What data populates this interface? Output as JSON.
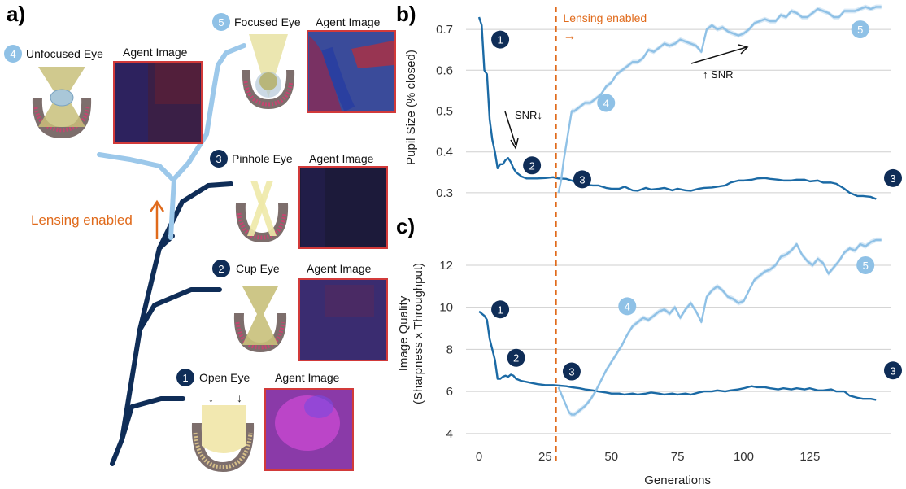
{
  "panel_a": {
    "label": "a)",
    "lensing_text": "Lensing enabled",
    "agent_image_label": "Agent Image",
    "eyes": [
      {
        "num": "1",
        "name": "Open Eye"
      },
      {
        "num": "2",
        "name": "Cup Eye"
      },
      {
        "num": "3",
        "name": "Pinhole Eye"
      },
      {
        "num": "4",
        "name": "Unfocused Eye"
      },
      {
        "num": "5",
        "name": "Focused Eye"
      }
    ]
  },
  "colors": {
    "dark_series": "#1b6aa5",
    "light_series": "#8fc1e6",
    "dark_badge": "#0f2d57",
    "light_badge": "#8fc1e6",
    "lensing": "#e06a1b",
    "tree_dark": "#0f2d57",
    "tree_light": "#9cc8ea"
  },
  "chart_data": [
    {
      "panel": "b)",
      "type": "line",
      "title": "",
      "xlabel": "",
      "ylabel": "Pupil Size (% closed)",
      "xlim": [
        -8,
        157
      ],
      "ylim": [
        0.27,
        0.74
      ],
      "yticks": [
        0.3,
        0.4,
        0.5,
        0.6,
        0.7
      ],
      "grid": "horizontal",
      "vline": {
        "x": 29,
        "label": "Lensing enabled"
      },
      "annotations": [
        "SNR↓",
        "↑ SNR"
      ],
      "badges": [
        {
          "num": "1",
          "series": "dark",
          "x": 8,
          "y": 0.675
        },
        {
          "num": "2",
          "series": "dark",
          "x": 20,
          "y": 0.367
        },
        {
          "num": "3",
          "series": "dark",
          "x": 39,
          "y": 0.333
        },
        {
          "num": "3",
          "series": "dark",
          "x": 161,
          "y": 0.336
        },
        {
          "num": "4",
          "series": "light",
          "x": 48,
          "y": 0.52
        },
        {
          "num": "5",
          "series": "light",
          "x": 144,
          "y": 0.7
        }
      ],
      "series": [
        {
          "key": "dark",
          "x": [
            0,
            1,
            2,
            3,
            4,
            5,
            6,
            7,
            8,
            9,
            10,
            11,
            12,
            13,
            14,
            15,
            16,
            18,
            20,
            22,
            25,
            28,
            30,
            33,
            35,
            38,
            40,
            43,
            45,
            48,
            50,
            53,
            55,
            58,
            60,
            63,
            65,
            68,
            70,
            73,
            75,
            78,
            80,
            83,
            85,
            88,
            90,
            93,
            95,
            98,
            100,
            103,
            105,
            108,
            110,
            113,
            115,
            118,
            120,
            123,
            125,
            128,
            130,
            133,
            135,
            138,
            140,
            143,
            145,
            148,
            150
          ],
          "values": [
            0.73,
            0.71,
            0.6,
            0.59,
            0.48,
            0.43,
            0.4,
            0.36,
            0.37,
            0.37,
            0.38,
            0.385,
            0.375,
            0.36,
            0.35,
            0.345,
            0.34,
            0.335,
            0.335,
            0.335,
            0.336,
            0.338,
            0.335,
            0.334,
            0.33,
            0.322,
            0.32,
            0.318,
            0.318,
            0.312,
            0.31,
            0.31,
            0.315,
            0.306,
            0.305,
            0.312,
            0.308,
            0.31,
            0.312,
            0.306,
            0.31,
            0.306,
            0.305,
            0.31,
            0.312,
            0.313,
            0.315,
            0.318,
            0.325,
            0.33,
            0.33,
            0.332,
            0.335,
            0.336,
            0.334,
            0.332,
            0.33,
            0.33,
            0.332,
            0.332,
            0.328,
            0.33,
            0.325,
            0.325,
            0.322,
            0.31,
            0.3,
            0.292,
            0.292,
            0.29,
            0.285
          ]
        },
        {
          "key": "light",
          "x": [
            30,
            31,
            32,
            33,
            34,
            35,
            36,
            38,
            40,
            42,
            44,
            46,
            48,
            50,
            52,
            54,
            56,
            58,
            60,
            62,
            64,
            66,
            68,
            70,
            72,
            74,
            76,
            78,
            80,
            82,
            84,
            86,
            88,
            90,
            92,
            94,
            96,
            98,
            100,
            102,
            104,
            106,
            108,
            110,
            112,
            114,
            116,
            118,
            120,
            122,
            124,
            126,
            128,
            130,
            132,
            134,
            136,
            138,
            140,
            142,
            144,
            146,
            148,
            150,
            152
          ],
          "values": [
            0.3,
            0.33,
            0.38,
            0.42,
            0.46,
            0.5,
            0.5,
            0.51,
            0.52,
            0.52,
            0.53,
            0.54,
            0.56,
            0.57,
            0.59,
            0.6,
            0.61,
            0.62,
            0.62,
            0.63,
            0.65,
            0.645,
            0.655,
            0.665,
            0.66,
            0.665,
            0.675,
            0.67,
            0.665,
            0.66,
            0.645,
            0.7,
            0.71,
            0.7,
            0.705,
            0.695,
            0.69,
            0.685,
            0.69,
            0.7,
            0.715,
            0.72,
            0.725,
            0.72,
            0.72,
            0.735,
            0.73,
            0.745,
            0.74,
            0.73,
            0.73,
            0.74,
            0.75,
            0.745,
            0.74,
            0.73,
            0.73,
            0.745,
            0.745,
            0.745,
            0.75,
            0.755,
            0.75,
            0.755,
            0.755
          ]
        }
      ]
    },
    {
      "panel": "c)",
      "type": "line",
      "title": "",
      "xlabel": "Generations",
      "ylabel": "Image Quality (Sharpness x Throughput)",
      "ylabel_lines": [
        "Image Quality",
        "(Sharpness x Throughput)"
      ],
      "xlim": [
        -8,
        157
      ],
      "ylim": [
        3.8,
        13.7
      ],
      "xticks": [
        0,
        25,
        50,
        75,
        100,
        125
      ],
      "yticks": [
        4,
        6,
        8,
        10,
        12
      ],
      "grid": "horizontal",
      "vline": {
        "x": 29
      },
      "badges": [
        {
          "num": "1",
          "series": "dark",
          "x": 8,
          "y": 9.9
        },
        {
          "num": "2",
          "series": "dark",
          "x": 14,
          "y": 7.6
        },
        {
          "num": "3",
          "series": "dark",
          "x": 35,
          "y": 6.95
        },
        {
          "num": "3",
          "series": "dark",
          "x": 161,
          "y": 7.0
        },
        {
          "num": "4",
          "series": "light",
          "x": 56,
          "y": 10.05
        },
        {
          "num": "5",
          "series": "light",
          "x": 146,
          "y": 12.0
        }
      ],
      "series": [
        {
          "key": "dark",
          "x": [
            0,
            1,
            2,
            3,
            4,
            5,
            6,
            7,
            8,
            9,
            10,
            11,
            12,
            13,
            14,
            15,
            16,
            18,
            20,
            22,
            25,
            28,
            30,
            33,
            35,
            38,
            40,
            43,
            45,
            48,
            50,
            53,
            55,
            58,
            60,
            63,
            65,
            68,
            70,
            73,
            75,
            78,
            80,
            83,
            85,
            88,
            90,
            93,
            95,
            98,
            100,
            103,
            105,
            108,
            110,
            113,
            115,
            118,
            120,
            123,
            125,
            128,
            130,
            133,
            135,
            138,
            140,
            143,
            145,
            148,
            150
          ],
          "values": [
            9.8,
            9.7,
            9.6,
            9.4,
            8.5,
            8.0,
            7.5,
            6.6,
            6.6,
            6.7,
            6.75,
            6.7,
            6.8,
            6.75,
            6.6,
            6.55,
            6.5,
            6.45,
            6.4,
            6.35,
            6.3,
            6.3,
            6.28,
            6.25,
            6.2,
            6.15,
            6.1,
            6.05,
            6.0,
            5.95,
            5.9,
            5.9,
            5.85,
            5.9,
            5.85,
            5.9,
            5.95,
            5.9,
            5.85,
            5.9,
            5.85,
            5.9,
            5.85,
            5.95,
            6.0,
            6.0,
            6.05,
            6.0,
            6.05,
            6.1,
            6.15,
            6.25,
            6.2,
            6.2,
            6.15,
            6.1,
            6.15,
            6.1,
            6.15,
            6.1,
            6.15,
            6.05,
            6.05,
            6.1,
            6.0,
            6.0,
            5.8,
            5.7,
            5.65,
            5.65,
            5.6
          ]
        },
        {
          "key": "light",
          "x": [
            30,
            31,
            32,
            33,
            34,
            35,
            36,
            38,
            40,
            42,
            44,
            46,
            48,
            50,
            52,
            54,
            56,
            58,
            60,
            62,
            64,
            66,
            68,
            70,
            72,
            74,
            76,
            78,
            80,
            82,
            84,
            86,
            88,
            90,
            92,
            94,
            96,
            98,
            100,
            102,
            104,
            106,
            108,
            110,
            112,
            114,
            116,
            118,
            120,
            122,
            124,
            126,
            128,
            130,
            132,
            134,
            136,
            138,
            140,
            142,
            144,
            146,
            148,
            150,
            152
          ],
          "values": [
            6.2,
            5.9,
            5.6,
            5.3,
            5.0,
            4.9,
            4.9,
            5.1,
            5.3,
            5.6,
            6.0,
            6.5,
            7.0,
            7.4,
            7.8,
            8.2,
            8.7,
            9.1,
            9.3,
            9.5,
            9.4,
            9.6,
            9.8,
            9.9,
            9.7,
            10.0,
            9.5,
            9.9,
            10.2,
            9.8,
            9.3,
            10.5,
            10.8,
            11.0,
            10.8,
            10.5,
            10.4,
            10.2,
            10.3,
            10.8,
            11.3,
            11.5,
            11.7,
            11.8,
            12.0,
            12.4,
            12.5,
            12.7,
            13.0,
            12.5,
            12.2,
            12.0,
            12.3,
            12.1,
            11.6,
            11.9,
            12.2,
            12.6,
            12.8,
            12.7,
            13.0,
            12.9,
            13.1,
            13.2,
            13.2
          ]
        }
      ]
    }
  ]
}
